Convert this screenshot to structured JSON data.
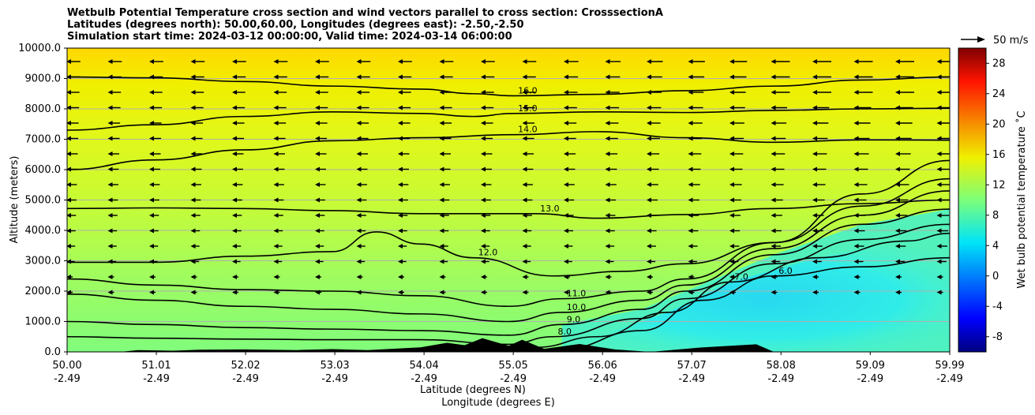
{
  "chart_data": {
    "type": "heatmap",
    "title_lines": [
      "Wetbulb Potential Temperature cross section and wind vectors parallel to cross section: CrosssectionA",
      "Latitudes (degrees north): 50.00,60.00, Longitudes (degrees east): -2.50,-2.50",
      "Simulation start time: 2024-03-12 00:00:00, Valid time: 2024-03-14 06:00:00"
    ],
    "ylabel": "Altitude (meters)",
    "xlabel": "Latitude (degrees N)",
    "xlabel2": "Longitude (degrees E)",
    "colorbar_label": "Wet bulb potential temperature $^\\circ$C",
    "colorbar_label_display": "Wet bulb potential temperature ˚C",
    "quiver_key_label": "50 m/s",
    "ylim": [
      0,
      10000
    ],
    "yticks": [
      "0.0",
      "1000.0",
      "2000.0",
      "3000.0",
      "4000.0",
      "5000.0",
      "6000.0",
      "7000.0",
      "8000.0",
      "9000.0",
      "10000.0"
    ],
    "ytick_values": [
      0,
      1000,
      2000,
      3000,
      4000,
      5000,
      6000,
      7000,
      8000,
      9000,
      10000
    ],
    "xlim": [
      50.0,
      59.99
    ],
    "xticks_lat": [
      "50.00",
      "51.01",
      "52.02",
      "53.03",
      "54.04",
      "55.05",
      "56.06",
      "57.07",
      "58.08",
      "59.09",
      "59.99"
    ],
    "xticks_lon": [
      "-2.49",
      "-2.49",
      "-2.49",
      "-2.49",
      "-2.49",
      "-2.49",
      "-2.49",
      "-2.49",
      "-2.49",
      "-2.49",
      "-2.49"
    ],
    "xtick_values": [
      50.0,
      51.01,
      52.02,
      53.03,
      54.04,
      55.05,
      56.06,
      57.07,
      58.08,
      59.09,
      59.99
    ],
    "colorbar_range": [
      -10,
      30
    ],
    "colorbar_ticks": [
      "-8",
      "-4",
      "0",
      "4",
      "8",
      "12",
      "16",
      "20",
      "24",
      "28"
    ],
    "colorbar_tick_values": [
      -8,
      -4,
      0,
      4,
      8,
      12,
      16,
      20,
      24,
      28
    ],
    "colormap": "jet",
    "grid": "horizontal",
    "contours": [
      {
        "level": 16,
        "label": "16.0",
        "points": [
          [
            50.0,
            9050
          ],
          [
            51.0,
            9020
          ],
          [
            52.0,
            8900
          ],
          [
            53.0,
            8750
          ],
          [
            54.0,
            8650
          ],
          [
            54.6,
            8500
          ],
          [
            55.05,
            8430
          ],
          [
            56.0,
            8480
          ],
          [
            57.0,
            8600
          ],
          [
            58.0,
            8750
          ],
          [
            59.0,
            8950
          ],
          [
            59.99,
            9050
          ]
        ]
      },
      {
        "level": 15,
        "label": "15.0",
        "points": [
          [
            50.0,
            7300
          ],
          [
            51.0,
            7480
          ],
          [
            52.0,
            7750
          ],
          [
            53.0,
            7900
          ],
          [
            54.0,
            7850
          ],
          [
            54.6,
            7750
          ],
          [
            55.05,
            7850
          ],
          [
            56.0,
            7900
          ],
          [
            57.0,
            7880
          ],
          [
            58.0,
            7950
          ],
          [
            59.0,
            8000
          ],
          [
            59.99,
            8020
          ]
        ]
      },
      {
        "level": 14,
        "label": "14.0",
        "points": [
          [
            50.0,
            6000
          ],
          [
            51.0,
            6320
          ],
          [
            52.0,
            6650
          ],
          [
            53.0,
            6950
          ],
          [
            54.0,
            7050
          ],
          [
            55.05,
            7150
          ],
          [
            56.0,
            7250
          ],
          [
            57.0,
            7050
          ],
          [
            58.0,
            6900
          ],
          [
            59.0,
            6980
          ],
          [
            59.99,
            6970
          ]
        ]
      },
      {
        "level": 13,
        "label": "13.0",
        "points": [
          [
            50.0,
            4720
          ],
          [
            51.0,
            4740
          ],
          [
            52.0,
            4720
          ],
          [
            53.0,
            4650
          ],
          [
            54.0,
            4550
          ],
          [
            54.6,
            4550
          ],
          [
            55.3,
            4550
          ],
          [
            56.0,
            4400
          ],
          [
            57.0,
            4520
          ],
          [
            58.0,
            4720
          ],
          [
            59.0,
            4880
          ],
          [
            59.99,
            5000
          ]
        ]
      },
      {
        "level": 12,
        "label": "12.0",
        "points": [
          [
            50.0,
            2950
          ],
          [
            51.0,
            2950
          ],
          [
            52.0,
            3150
          ],
          [
            53.0,
            3300
          ],
          [
            53.5,
            3950
          ],
          [
            54.0,
            3550
          ],
          [
            54.6,
            3100
          ],
          [
            55.5,
            2500
          ],
          [
            56.3,
            2650
          ],
          [
            57.0,
            2900
          ],
          [
            58.0,
            3600
          ],
          [
            59.0,
            5200
          ],
          [
            59.99,
            6300
          ]
        ]
      },
      {
        "level": 11,
        "label": "11.0",
        "points": [
          [
            50.0,
            2400
          ],
          [
            51.0,
            2200
          ],
          [
            52.0,
            2050
          ],
          [
            53.0,
            2000
          ],
          [
            54.0,
            1850
          ],
          [
            55.0,
            1500
          ],
          [
            55.6,
            1750
          ],
          [
            56.5,
            2000
          ],
          [
            57.0,
            2400
          ],
          [
            58.0,
            3600
          ],
          [
            59.0,
            4800
          ],
          [
            59.99,
            5700
          ]
        ]
      },
      {
        "level": 10,
        "label": "10.0",
        "points": [
          [
            50.0,
            1900
          ],
          [
            51.0,
            1700
          ],
          [
            52.0,
            1500
          ],
          [
            53.0,
            1400
          ],
          [
            54.0,
            1250
          ],
          [
            55.0,
            1000
          ],
          [
            55.6,
            1300
          ],
          [
            56.5,
            1700
          ],
          [
            57.0,
            2200
          ],
          [
            58.0,
            3400
          ],
          [
            59.0,
            4500
          ],
          [
            59.99,
            5300
          ]
        ]
      },
      {
        "level": 9,
        "label": "9.0",
        "points": [
          [
            50.0,
            1000
          ],
          [
            51.0,
            900
          ],
          [
            52.0,
            800
          ],
          [
            53.0,
            750
          ],
          [
            54.0,
            700
          ],
          [
            55.0,
            550
          ],
          [
            55.6,
            900
          ],
          [
            56.5,
            1400
          ],
          [
            57.0,
            2000
          ],
          [
            58.0,
            3200
          ],
          [
            59.0,
            4200
          ],
          [
            59.99,
            4700
          ]
        ]
      },
      {
        "level": 8,
        "label": "8.0",
        "points": [
          [
            50.0,
            500
          ],
          [
            51.0,
            450
          ],
          [
            52.0,
            420
          ],
          [
            53.0,
            400
          ],
          [
            54.0,
            400
          ],
          [
            55.0,
            250
          ],
          [
            55.5,
            500
          ],
          [
            56.5,
            1100
          ],
          [
            57.0,
            1750
          ],
          [
            58.0,
            2900
          ],
          [
            59.0,
            3700
          ],
          [
            59.99,
            4200
          ]
        ]
      },
      {
        "level": 7,
        "label": "7.0",
        "points": [
          [
            55.3,
            150
          ],
          [
            56.0,
            500
          ],
          [
            56.8,
            1300
          ],
          [
            57.5,
            2300
          ],
          [
            58.5,
            3100
          ],
          [
            59.5,
            3650
          ],
          [
            59.99,
            3900
          ]
        ]
      },
      {
        "level": 6,
        "label": "6.0",
        "points": [
          [
            55.6,
            100
          ],
          [
            56.5,
            700
          ],
          [
            57.2,
            1700
          ],
          [
            58.0,
            2500
          ],
          [
            59.0,
            2800
          ],
          [
            59.99,
            3100
          ]
        ]
      }
    ]
  }
}
